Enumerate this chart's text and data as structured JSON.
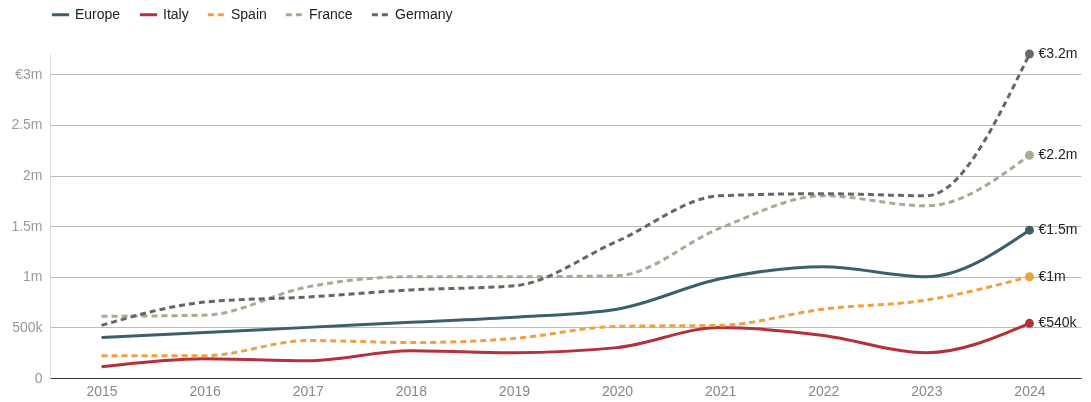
{
  "chart_data": {
    "type": "line",
    "categories": [
      "2015",
      "2016",
      "2017",
      "2018",
      "2019",
      "2020",
      "2021",
      "2022",
      "2023",
      "2024"
    ],
    "series": [
      {
        "name": "Europe",
        "color": "#3b5f6b",
        "line_style": "solid",
        "values": [
          400000,
          450000,
          500000,
          550000,
          600000,
          680000,
          980000,
          1100000,
          1000000,
          1460000
        ],
        "value_labels": [
          null,
          null,
          null,
          null,
          null,
          null,
          null,
          null,
          null,
          "€1.5m"
        ]
      },
      {
        "name": "Italy",
        "color": "#b5303a",
        "line_style": "solid",
        "values": [
          110000,
          190000,
          170000,
          270000,
          250000,
          300000,
          500000,
          420000,
          250000,
          540000
        ],
        "value_labels": [
          null,
          null,
          null,
          null,
          null,
          null,
          null,
          null,
          null,
          "€540k"
        ]
      },
      {
        "name": "Spain",
        "color": "#f0a040",
        "line_style": "dashed",
        "values": [
          220000,
          220000,
          370000,
          350000,
          390000,
          510000,
          520000,
          680000,
          770000,
          1000000
        ],
        "value_labels": [
          null,
          null,
          null,
          null,
          null,
          null,
          null,
          null,
          null,
          "€1m"
        ]
      },
      {
        "name": "France",
        "color": "#a8ab93",
        "line_style": "dashed",
        "values": [
          610000,
          620000,
          900000,
          1000000,
          1000000,
          1010000,
          1480000,
          1800000,
          1700000,
          2200000
        ],
        "value_labels": [
          null,
          null,
          null,
          null,
          null,
          null,
          null,
          null,
          null,
          "€2.2m"
        ]
      },
      {
        "name": "Germany",
        "color": "#666666",
        "line_style": "dashed",
        "values": [
          520000,
          750000,
          800000,
          870000,
          910000,
          1350000,
          1800000,
          1820000,
          1800000,
          3200000
        ],
        "value_labels": [
          null,
          null,
          null,
          null,
          null,
          null,
          null,
          null,
          null,
          "€3.2m"
        ]
      }
    ],
    "yticks": [
      0,
      {
        "value": 500000,
        "label": "500k"
      },
      {
        "value": 1000000,
        "label": "1m"
      },
      {
        "value": 1500000,
        "label": "1.5m"
      },
      {
        "value": 2000000,
        "label": "2m"
      },
      {
        "value": 2500000,
        "label": "2.5m"
      },
      {
        "value": 3000000,
        "label": "€3m"
      }
    ],
    "ylim": [
      0,
      3200000
    ],
    "grid": "y",
    "legend": "top left"
  }
}
